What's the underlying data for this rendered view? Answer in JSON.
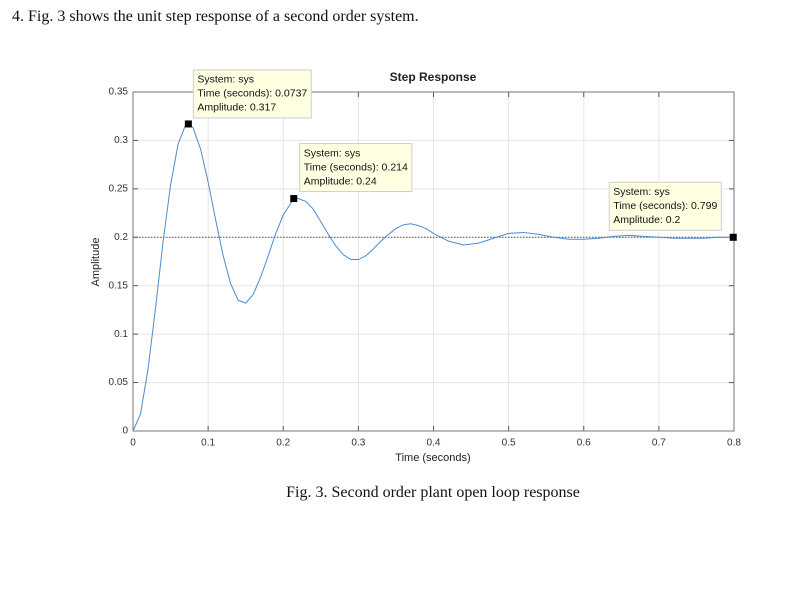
{
  "question": "4.  Fig. 3 shows the unit step response of a second order system.",
  "caption": "Fig. 3.  Second order plant open loop response",
  "chart_data": {
    "type": "line",
    "title": "Step Response",
    "xlabel": "Time (seconds)",
    "ylabel": "Amplitude",
    "x": [
      0,
      0.01,
      0.02,
      0.03,
      0.04,
      0.05,
      0.06,
      0.07,
      0.0737,
      0.08,
      0.09,
      0.1,
      0.11,
      0.12,
      0.13,
      0.14,
      0.15,
      0.16,
      0.17,
      0.18,
      0.19,
      0.2,
      0.214,
      0.22,
      0.23,
      0.24,
      0.25,
      0.26,
      0.27,
      0.28,
      0.29,
      0.3,
      0.31,
      0.32,
      0.33,
      0.34,
      0.35,
      0.36,
      0.37,
      0.38,
      0.39,
      0.4,
      0.42,
      0.44,
      0.46,
      0.48,
      0.5,
      0.52,
      0.54,
      0.56,
      0.58,
      0.6,
      0.62,
      0.64,
      0.66,
      0.68,
      0.7,
      0.72,
      0.74,
      0.76,
      0.78,
      0.799,
      0.8
    ],
    "values": [
      0,
      0.0175,
      0.064,
      0.127,
      0.195,
      0.254,
      0.296,
      0.316,
      0.317,
      0.313,
      0.291,
      0.257,
      0.218,
      0.181,
      0.152,
      0.135,
      0.132,
      0.141,
      0.159,
      0.181,
      0.204,
      0.223,
      0.24,
      0.24,
      0.237,
      0.229,
      0.216,
      0.203,
      0.191,
      0.182,
      0.177,
      0.177,
      0.181,
      0.188,
      0.196,
      0.203,
      0.209,
      0.213,
      0.214,
      0.212,
      0.209,
      0.204,
      0.196,
      0.192,
      0.194,
      0.199,
      0.204,
      0.205,
      0.203,
      0.2,
      0.198,
      0.198,
      0.199,
      0.201,
      0.202,
      0.201,
      0.2,
      0.199,
      0.199,
      0.199,
      0.2,
      0.2,
      0.2
    ],
    "color": "#4a8cd0",
    "reference_line": 0.2,
    "xlim": [
      0,
      0.8
    ],
    "xticks": [
      0,
      0.1,
      0.2,
      0.3,
      0.4,
      0.5,
      0.6,
      0.7,
      0.8
    ],
    "ylim": [
      0,
      0.35
    ],
    "yticks": [
      0,
      0.05,
      0.1,
      0.15,
      0.2,
      0.25,
      0.3,
      0.35
    ],
    "grid": true,
    "annotations": [
      {
        "x": 0.0737,
        "y": 0.317,
        "lines": [
          "System: sys",
          "Time (seconds): 0.0737",
          "Amplitude: 0.317"
        ]
      },
      {
        "x": 0.214,
        "y": 0.24,
        "lines": [
          "System: sys",
          "Time (seconds): 0.214",
          "Amplitude: 0.24"
        ]
      },
      {
        "x": 0.799,
        "y": 0.2,
        "lines": [
          "System: sys",
          "Time (seconds): 0.799",
          "Amplitude: 0.2"
        ]
      }
    ]
  }
}
